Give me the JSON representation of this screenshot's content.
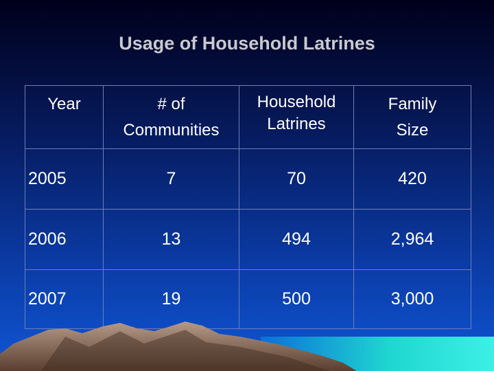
{
  "slide": {
    "title": "Usage of Household Latrines"
  },
  "table": {
    "headers": {
      "year": "Year",
      "communities_line1": "# of",
      "communities_line2": "Communities",
      "latrines_line1": "Household",
      "latrines_line2": "Latrines",
      "family_line1": "Family",
      "family_line2": "Size"
    },
    "rows": [
      {
        "year": "2005",
        "communities": "7",
        "latrines": "70",
        "family_size": "420"
      },
      {
        "year": "2006",
        "communities": "13",
        "latrines": "494",
        "family_size": "2,964"
      },
      {
        "year": "2007",
        "communities": "19",
        "latrines": "500",
        "family_size": "3,000"
      }
    ]
  },
  "colors": {
    "background_top": "#00001a",
    "background_bottom": "#0f56d6",
    "title": "#c9c9cf",
    "text": "#ffffff",
    "grid": "#6f7fb8",
    "sea": "#1fd6d0",
    "mountain": "#8a6a58"
  }
}
